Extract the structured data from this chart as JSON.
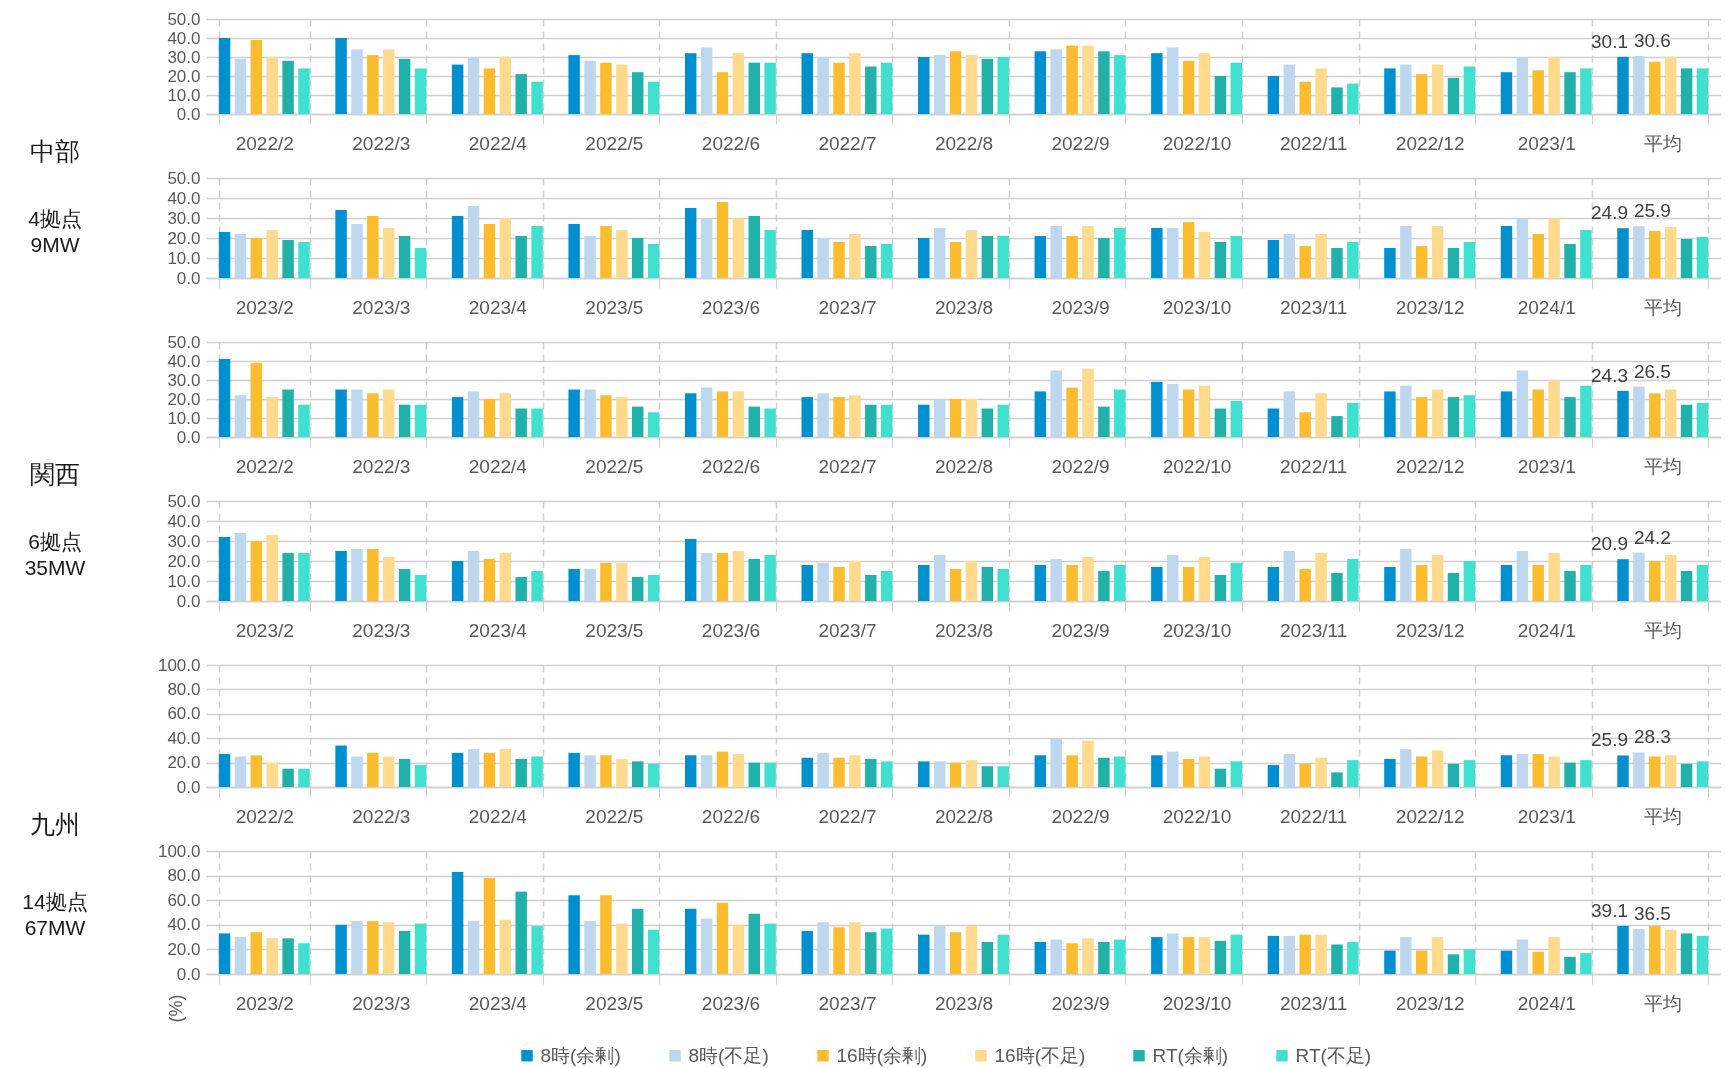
{
  "chart_data": [
    {
      "type": "bar",
      "categories": [
        "2022/2",
        "2022/3",
        "2022/4",
        "2022/5",
        "2022/6",
        "2022/7",
        "2022/8",
        "2022/9",
        "2022/10",
        "2022/11",
        "2022/12",
        "2023/1",
        "平均"
      ],
      "series": [
        {
          "color": "#0090d0",
          "values": [
            40,
            40,
            26,
            31,
            32,
            32,
            30,
            33,
            32,
            20,
            24,
            22,
            30.1
          ]
        },
        {
          "color": "#bdd7ee",
          "values": [
            29,
            34,
            30,
            28,
            35,
            30,
            31,
            34,
            35,
            26,
            26,
            30,
            30.6
          ]
        },
        {
          "color": "#fbbc2e",
          "values": [
            39,
            31,
            24,
            27,
            22,
            27,
            33,
            36,
            28,
            17,
            21,
            23,
            27.5
          ]
        },
        {
          "color": "#ffd98c",
          "values": [
            30,
            34,
            30,
            26,
            32,
            32,
            31,
            36,
            32,
            24,
            26,
            30,
            30
          ]
        },
        {
          "color": "#20b2aa",
          "values": [
            28,
            29,
            21,
            22,
            27,
            25,
            29,
            33,
            20,
            14,
            19,
            22,
            24
          ]
        },
        {
          "color": "#40e0d0",
          "values": [
            24,
            24,
            17,
            17,
            27,
            27,
            30,
            31,
            27,
            16,
            25,
            24,
            24
          ]
        }
      ],
      "ylim": [
        0,
        50
      ],
      "yticks": [
        {
          "value": 0,
          "label": "0.0"
        },
        {
          "value": 10,
          "label": "10.0"
        },
        {
          "value": 20,
          "label": "20.0"
        },
        {
          "value": 30,
          "label": "30.0"
        },
        {
          "value": 40,
          "label": "40.0"
        },
        {
          "value": 50,
          "label": "50.0"
        }
      ],
      "grid": true,
      "legend": false,
      "annotations": [
        "中部",
        {
          "text": "30.1",
          "x": "平均",
          "y": 30.1
        },
        {
          "text": "30.6",
          "x": "平均",
          "y": 30.6
        }
      ]
    },
    {
      "type": "bar",
      "categories": [
        "2023/2",
        "2023/3",
        "2023/4",
        "2023/5",
        "2023/6",
        "2023/7",
        "2023/8",
        "2023/9",
        "2023/10",
        "2023/11",
        "2023/12",
        "2024/1",
        "平均"
      ],
      "series": [
        {
          "color": "#0090d0",
          "values": [
            23,
            34,
            31,
            27,
            35,
            24,
            20,
            21,
            25,
            19,
            15,
            26,
            24.9
          ]
        },
        {
          "color": "#bdd7ee",
          "values": [
            22,
            27,
            36,
            21,
            30,
            20,
            25,
            26,
            25,
            22,
            26,
            30,
            25.9
          ]
        },
        {
          "color": "#fbbc2e",
          "values": [
            20,
            31,
            27,
            26,
            38,
            18,
            18,
            21,
            28,
            16,
            16,
            22,
            23.5
          ]
        },
        {
          "color": "#ffd98c",
          "values": [
            24,
            25,
            30,
            24,
            30,
            22,
            24,
            26,
            23,
            22,
            26,
            30,
            25.5
          ]
        },
        {
          "color": "#20b2aa",
          "values": [
            19,
            21,
            21,
            20,
            31,
            16,
            21,
            20,
            18,
            15,
            15,
            17,
            19.5
          ]
        },
        {
          "color": "#40e0d0",
          "values": [
            18,
            15,
            26,
            17,
            24,
            17,
            21,
            25,
            21,
            18,
            18,
            24,
            20.5
          ]
        }
      ],
      "ylim": [
        0,
        50
      ],
      "yticks": [
        {
          "value": 0,
          "label": "0.0"
        },
        {
          "value": 10,
          "label": "10.0"
        },
        {
          "value": 20,
          "label": "20.0"
        },
        {
          "value": 30,
          "label": "30.0"
        },
        {
          "value": 40,
          "label": "40.0"
        },
        {
          "value": 50,
          "label": "50.0"
        }
      ],
      "grid": true,
      "legend": false,
      "annotations": [
        "4拠点\n9MW",
        {
          "text": "24.9",
          "x": "平均",
          "y": 24.9
        },
        {
          "text": "25.9",
          "x": "平均",
          "y": 25.9
        }
      ]
    },
    {
      "type": "bar",
      "categories": [
        "2022/2",
        "2022/3",
        "2022/4",
        "2022/5",
        "2022/6",
        "2022/7",
        "2022/8",
        "2022/9",
        "2022/10",
        "2022/11",
        "2022/12",
        "2023/1",
        "平均"
      ],
      "series": [
        {
          "color": "#0090d0",
          "values": [
            41,
            25,
            21,
            25,
            23,
            21,
            17,
            24,
            29,
            15,
            24,
            24,
            24.3
          ]
        },
        {
          "color": "#bdd7ee",
          "values": [
            22,
            25,
            24,
            25,
            26,
            23,
            20,
            35,
            28,
            24,
            27,
            35,
            26.5
          ]
        },
        {
          "color": "#fbbc2e",
          "values": [
            39,
            23,
            20,
            22,
            24,
            21,
            20,
            26,
            25,
            13,
            21,
            25,
            23
          ]
        },
        {
          "color": "#ffd98c",
          "values": [
            21,
            25,
            23,
            21,
            24,
            22,
            20,
            36,
            27,
            23,
            25,
            30,
            25
          ]
        },
        {
          "color": "#20b2aa",
          "values": [
            25,
            17,
            15,
            16,
            16,
            17,
            15,
            16,
            15,
            11,
            21,
            21,
            17
          ]
        },
        {
          "color": "#40e0d0",
          "values": [
            17,
            17,
            15,
            13,
            15,
            17,
            17,
            25,
            19,
            18,
            22,
            27,
            18
          ]
        }
      ],
      "ylim": [
        0,
        50
      ],
      "yticks": [
        {
          "value": 0,
          "label": "0.0"
        },
        {
          "value": 10,
          "label": "10.0"
        },
        {
          "value": 20,
          "label": "20.0"
        },
        {
          "value": 30,
          "label": "30.0"
        },
        {
          "value": 40,
          "label": "40.0"
        },
        {
          "value": 50,
          "label": "50.0"
        }
      ],
      "grid": true,
      "legend": false,
      "annotations": [
        "関西",
        {
          "text": "24.3",
          "x": "平均",
          "y": 24.3
        },
        {
          "text": "26.5",
          "x": "平均",
          "y": 26.5
        }
      ]
    },
    {
      "type": "bar",
      "categories": [
        "2023/2",
        "2023/3",
        "2023/4",
        "2023/5",
        "2023/6",
        "2023/7",
        "2023/8",
        "2023/9",
        "2023/10",
        "2023/11",
        "2023/12",
        "2024/1",
        "平均"
      ],
      "series": [
        {
          "color": "#0090d0",
          "values": [
            32,
            25,
            20,
            16,
            31,
            18,
            18,
            18,
            17,
            17,
            17,
            18,
            20.9
          ]
        },
        {
          "color": "#bdd7ee",
          "values": [
            34,
            26,
            25,
            16,
            24,
            19,
            23,
            21,
            23,
            25,
            26,
            25,
            24.2
          ]
        },
        {
          "color": "#fbbc2e",
          "values": [
            30,
            26,
            21,
            19,
            24,
            17,
            16,
            18,
            17,
            16,
            18,
            18,
            20
          ]
        },
        {
          "color": "#ffd98c",
          "values": [
            33,
            22,
            24,
            19,
            25,
            20,
            20,
            22,
            22,
            24,
            23,
            24,
            23
          ]
        },
        {
          "color": "#20b2aa",
          "values": [
            24,
            16,
            12,
            12,
            21,
            13,
            17,
            15,
            13,
            14,
            14,
            15,
            15
          ]
        },
        {
          "color": "#40e0d0",
          "values": [
            24,
            13,
            15,
            13,
            23,
            15,
            16,
            18,
            19,
            21,
            20,
            18,
            18
          ]
        }
      ],
      "ylim": [
        0,
        50
      ],
      "yticks": [
        {
          "value": 0,
          "label": "0.0"
        },
        {
          "value": 10,
          "label": "10.0"
        },
        {
          "value": 20,
          "label": "20.0"
        },
        {
          "value": 30,
          "label": "30.0"
        },
        {
          "value": 40,
          "label": "40.0"
        },
        {
          "value": 50,
          "label": "50.0"
        }
      ],
      "grid": true,
      "legend": false,
      "annotations": [
        "6拠点\n35MW",
        {
          "text": "20.9",
          "x": "平均",
          "y": 20.9
        },
        {
          "text": "24.2",
          "x": "平均",
          "y": 24.2
        }
      ]
    },
    {
      "type": "bar",
      "categories": [
        "2022/2",
        "2022/3",
        "2022/4",
        "2022/5",
        "2022/6",
        "2022/7",
        "2022/8",
        "2022/9",
        "2022/10",
        "2022/11",
        "2022/12",
        "2023/1",
        "平均"
      ],
      "series": [
        {
          "color": "#0090d0",
          "values": [
            27,
            34,
            28,
            28,
            26,
            24,
            21,
            26,
            26,
            18,
            23,
            26,
            25.9
          ]
        },
        {
          "color": "#bdd7ee",
          "values": [
            25,
            25,
            31,
            26,
            26,
            28,
            21,
            40,
            29,
            27,
            31,
            27,
            28.3
          ]
        },
        {
          "color": "#fbbc2e",
          "values": [
            26,
            28,
            28,
            26,
            29,
            24,
            20,
            26,
            23,
            19,
            25,
            27,
            25
          ]
        },
        {
          "color": "#ffd98c",
          "values": [
            20,
            25,
            31,
            23,
            27,
            26,
            22,
            38,
            25,
            24,
            30,
            25,
            26
          ]
        },
        {
          "color": "#20b2aa",
          "values": [
            15,
            23,
            23,
            21,
            20,
            23,
            17,
            24,
            15,
            12,
            19,
            20,
            19
          ]
        },
        {
          "color": "#40e0d0",
          "values": [
            15,
            18,
            25,
            19,
            20,
            21,
            17,
            25,
            21,
            22,
            22,
            22,
            21
          ]
        }
      ],
      "ylim": [
        0,
        100
      ],
      "yticks": [
        {
          "value": 0,
          "label": "0.0"
        },
        {
          "value": 20,
          "label": "20.0"
        },
        {
          "value": 40,
          "label": "40.0"
        },
        {
          "value": 60,
          "label": "60.0"
        },
        {
          "value": 80,
          "label": "80.0"
        },
        {
          "value": 100,
          "label": "100.0"
        }
      ],
      "grid": true,
      "legend": false,
      "annotations": [
        "九州",
        {
          "text": "25.9",
          "x": "平均",
          "y": 25.9
        },
        {
          "text": "28.3",
          "x": "平均",
          "y": 28.3
        }
      ]
    },
    {
      "type": "bar",
      "categories": [
        "2023/2",
        "2023/3",
        "2023/4",
        "2023/5",
        "2023/6",
        "2023/7",
        "2023/8",
        "2023/9",
        "2023/10",
        "2023/11",
        "2023/12",
        "2024/1",
        "平均"
      ],
      "series": [
        {
          "name": "8時(余剰)",
          "color": "#0090d0",
          "values": [
            33,
            40,
            83,
            64,
            53,
            35,
            32,
            26,
            30,
            31,
            19,
            19,
            39.1
          ]
        },
        {
          "name": "8時(不足)",
          "color": "#bdd7ee",
          "values": [
            30,
            43,
            43,
            43,
            45,
            42,
            39,
            28,
            33,
            31,
            30,
            28,
            36.5
          ]
        },
        {
          "name": "16時(余剰)",
          "color": "#fbbc2e",
          "values": [
            34,
            43,
            78,
            64,
            58,
            38,
            34,
            25,
            30,
            32,
            19,
            18,
            39
          ]
        },
        {
          "name": "16時(不足)",
          "color": "#ffd98c",
          "values": [
            29,
            42,
            44,
            41,
            40,
            42,
            39,
            29,
            30,
            32,
            30,
            30,
            36
          ]
        },
        {
          "name": "RT(余剰)",
          "color": "#20b2aa",
          "values": [
            29,
            35,
            67,
            53,
            49,
            34,
            26,
            26,
            27,
            24,
            16,
            14,
            33
          ]
        },
        {
          "name": "RT(不足)",
          "color": "#40e0d0",
          "values": [
            25,
            41,
            39,
            36,
            41,
            37,
            32,
            28,
            32,
            26,
            20,
            17,
            31
          ]
        }
      ],
      "ylim": [
        0,
        100
      ],
      "yticks": [
        {
          "value": 0,
          "label": "0.0"
        },
        {
          "value": 20,
          "label": "20.0"
        },
        {
          "value": 40,
          "label": "40.0"
        },
        {
          "value": 60,
          "label": "60.0"
        },
        {
          "value": 80,
          "label": "80.0"
        },
        {
          "value": 100,
          "label": "100.0"
        }
      ],
      "grid": true,
      "legend": "bottom",
      "ylabel": "(%)",
      "annotations": [
        "14拠点\n67MW",
        {
          "text": "39.1",
          "x": "平均",
          "y": 39.1
        },
        {
          "text": "36.5",
          "x": "平均",
          "y": 36.5
        }
      ]
    }
  ]
}
